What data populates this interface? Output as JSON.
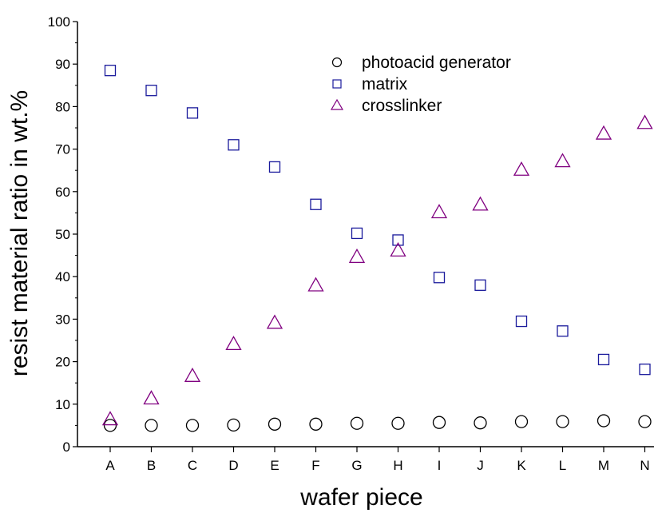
{
  "chart_data": {
    "type": "scatter",
    "title": "",
    "xlabel": "wafer piece",
    "ylabel": "resist material ratio in wt.%",
    "categories": [
      "A",
      "B",
      "C",
      "D",
      "E",
      "F",
      "G",
      "H",
      "I",
      "J",
      "K",
      "L",
      "M",
      "N"
    ],
    "ylim": [
      0,
      100
    ],
    "yticks": [
      0,
      10,
      20,
      30,
      40,
      50,
      60,
      70,
      80,
      90,
      100
    ],
    "grid": false,
    "legend_position": "top-right",
    "series": [
      {
        "name": "photoacid generator",
        "marker": "circle",
        "color": "#000000",
        "values": [
          5.0,
          5.0,
          5.0,
          5.1,
          5.3,
          5.3,
          5.5,
          5.5,
          5.7,
          5.6,
          5.9,
          5.9,
          6.1,
          5.9
        ]
      },
      {
        "name": "matrix",
        "marker": "square",
        "color": "#1a1a9c",
        "values": [
          88.5,
          83.8,
          78.5,
          71.0,
          65.8,
          57.0,
          50.2,
          48.6,
          39.8,
          38.0,
          29.5,
          27.2,
          20.5,
          18.2
        ]
      },
      {
        "name": "crosslinker",
        "marker": "triangle",
        "color": "#800080",
        "values": [
          6.3,
          11.2,
          16.5,
          24.0,
          29.0,
          37.8,
          44.5,
          46.0,
          55.0,
          56.8,
          65.0,
          67.0,
          73.5,
          76.0
        ]
      }
    ]
  }
}
